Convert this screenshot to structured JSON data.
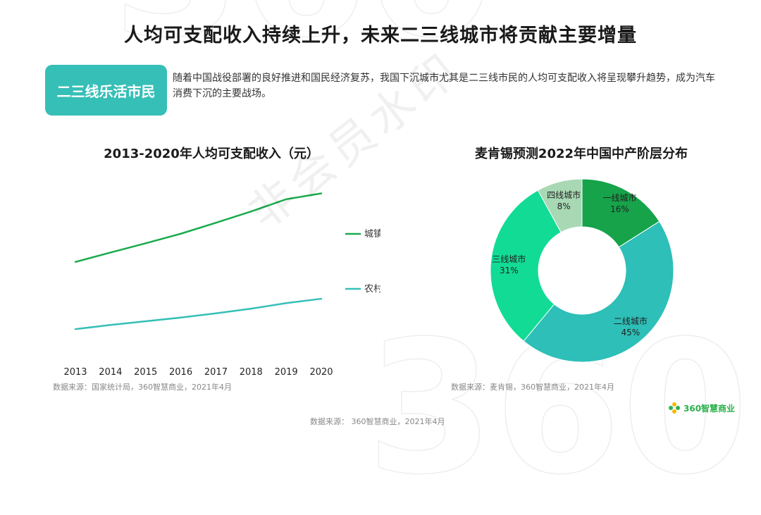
{
  "page": {
    "title": "人均可支配收入持续上升，未来二三线城市将贡献主要增量",
    "tag": "二三线乐活市民",
    "description": "随着中国战役部署的良好推进和国民经济复苏，我国下沉城市尤其是二三线市民的人均可支配收入将呈现攀升趋势，成为汽车消费下沉的主要战场。",
    "watermark": "非会员水印",
    "footer_source": "数据来源： 360智慧商业，2021年4月",
    "logo_text": "360智慧商业",
    "bg_numbers": [
      "360",
      "360"
    ]
  },
  "colors": {
    "urban": "#1aab4d",
    "rural": "#36bfb7",
    "tag_bg": "#36bfb7"
  },
  "chart_data": [
    {
      "type": "line",
      "title": "2013-2020年人均可支配收入（元）",
      "x": [
        "2013",
        "2014",
        "2015",
        "2016",
        "2017",
        "2018",
        "2019",
        "2020"
      ],
      "series": [
        {
          "name": "城镇",
          "color": "#1aab4d",
          "values": [
            26467,
            28844,
            31195,
            33616,
            36396,
            39251,
            42359,
            43834
          ]
        },
        {
          "name": "农村",
          "color": "#36bfb7",
          "values": [
            9430,
            10489,
            11422,
            12363,
            13432,
            14617,
            16021,
            17131
          ]
        }
      ],
      "ylim": [
        0,
        50000
      ],
      "grid": false,
      "legend": "right",
      "source": "数据来源：国家统计局，360智慧商业，2021年4月"
    },
    {
      "type": "pie",
      "title": "麦肯锡预测2022年中国中产阶层分布",
      "donut": true,
      "slices": [
        {
          "label": "一线城市",
          "value": 16,
          "pct": "16%",
          "color": "#16a34a"
        },
        {
          "label": "二线城市",
          "value": 45,
          "pct": "45%",
          "color": "#2dbfb8"
        },
        {
          "label": "三线城市",
          "value": 31,
          "pct": "31%",
          "color": "#12db95"
        },
        {
          "label": "四线城市",
          "value": 8,
          "pct": "8%",
          "color": "#a8d8b4"
        }
      ],
      "source": "数据来源：麦肯锡，360智慧商业，2021年4月"
    }
  ]
}
